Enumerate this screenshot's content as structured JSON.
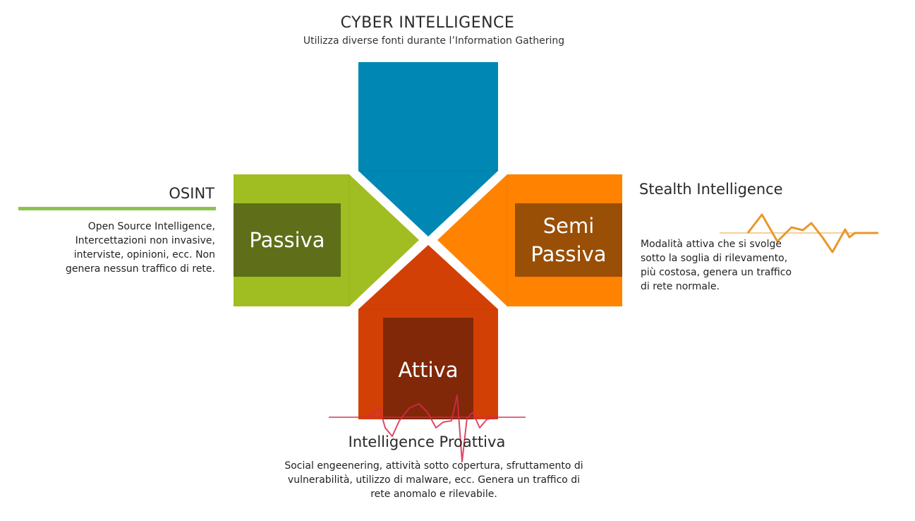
{
  "header": {
    "title": "CYBER INTELLIGENCE",
    "subtitle": "Utilizza diverse fonti durante l’Information Gathering"
  },
  "left_section": {
    "title": "OSINT",
    "description": "Open Source Intelligence, Intercettazioni non invasive, interviste, opinioni, ecc. Non genera nessun traffico di rete.",
    "color": "#8bc34a"
  },
  "right_section": {
    "title": "Stealth Intelligence",
    "description": "Modalità attiva che si svolge sotto la soglia di rilevamento, più costosa, genera un traffico di rete normale."
  },
  "bottom_section": {
    "title": "Intelligence Proattiva",
    "description": "Social engeenering, attività sotto copertura, sfruttamento di vulnerabilità, utilizzo di malware, ecc. Genera un traffico di rete anomalo e rilevabile."
  },
  "shapes": {
    "top": {
      "color": "#0087b4"
    },
    "left": {
      "label": "Passiva",
      "color": "#a0bd22",
      "inner_color": "#5f6e18"
    },
    "right": {
      "label": "Semi\nPassiva",
      "color": "#ff8300",
      "inner_color": "#994f05"
    },
    "bottom": {
      "label": "Attiva",
      "color": "#d34006",
      "inner_color": "#802808"
    }
  },
  "waves": {
    "orange_color": "#e8982a",
    "red_color": "#d8274e"
  }
}
